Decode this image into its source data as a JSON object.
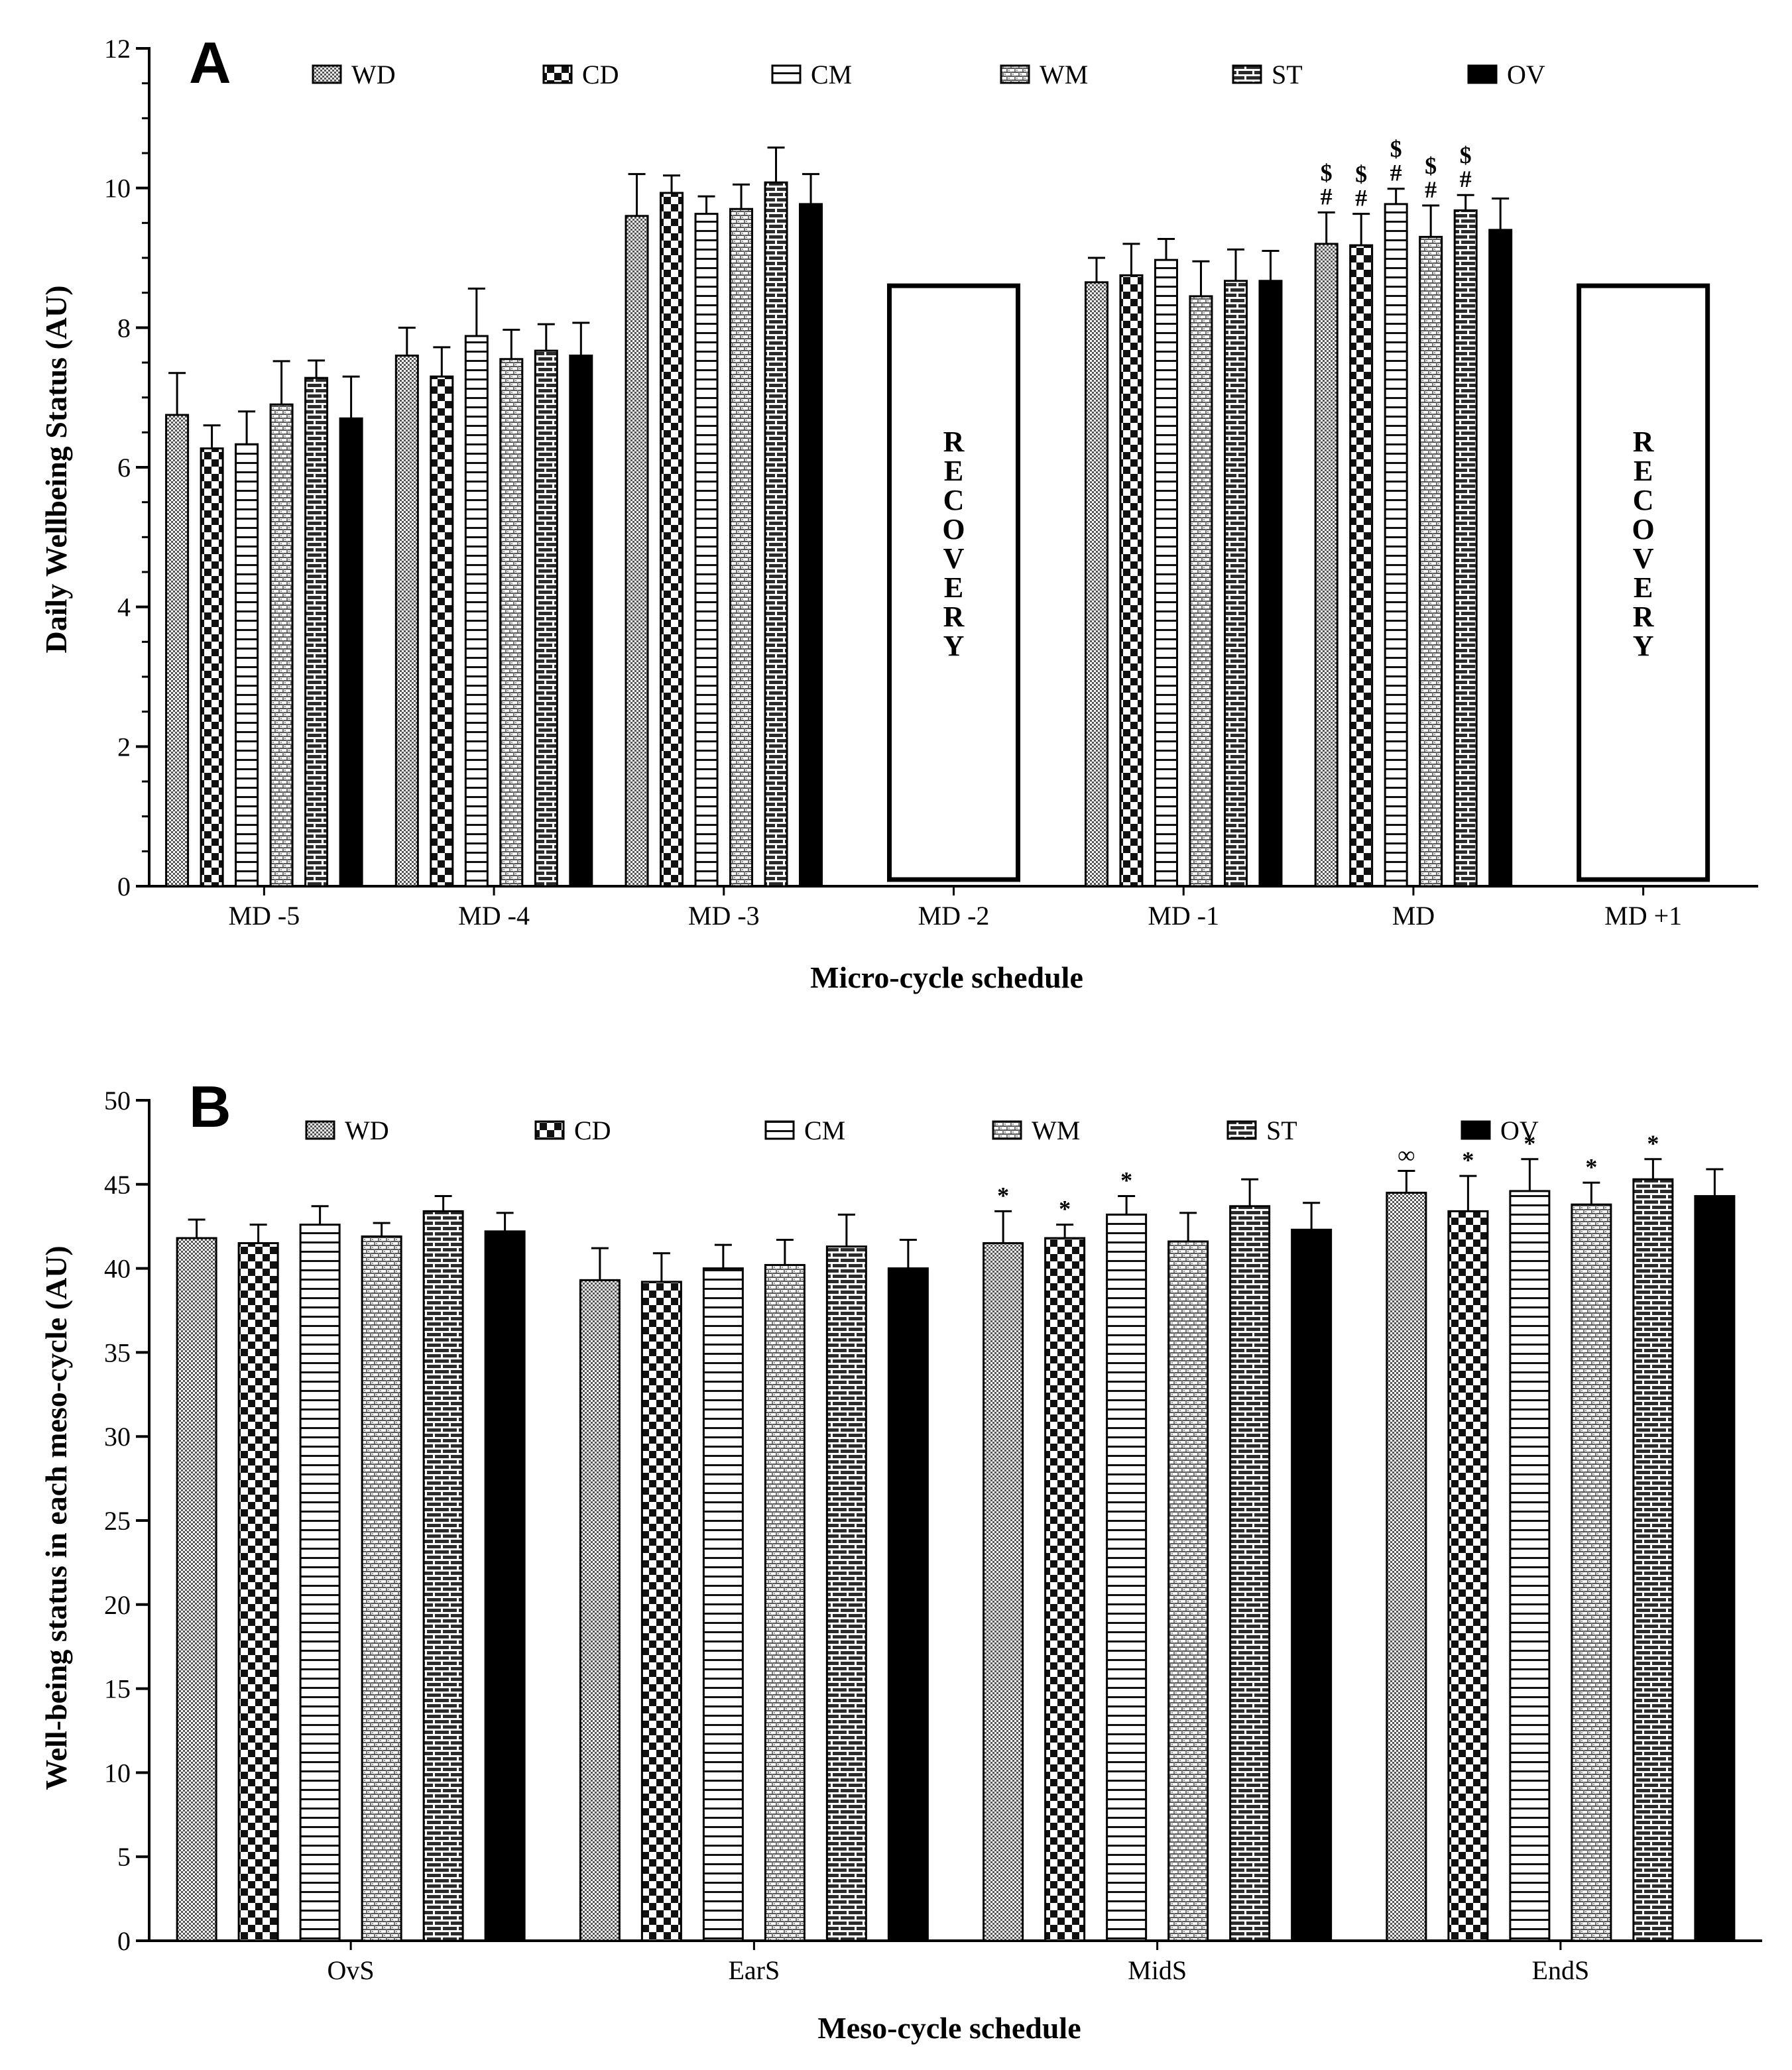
{
  "chart_data": [
    {
      "type": "bar",
      "panel": "A",
      "xlabel": "Micro-cycle schedule",
      "ylabel": "Daily Wellbeing Status (AU)",
      "ylim": [
        0,
        12
      ],
      "yticks": [
        0,
        2,
        4,
        6,
        8,
        10,
        12
      ],
      "categories": [
        "MD -5",
        "MD -4",
        "MD -3",
        "MD -2",
        "MD -1",
        "MD",
        "MD +1"
      ],
      "legend": [
        "WD",
        "CD",
        "CM",
        "WM",
        "ST",
        "OV"
      ],
      "series": [
        {
          "name": "WD",
          "values": [
            6.75,
            7.6,
            9.6,
            null,
            8.65,
            9.2,
            null
          ],
          "errors": [
            0.6,
            0.4,
            0.6,
            null,
            0.35,
            0.45,
            null
          ]
        },
        {
          "name": "CD",
          "values": [
            6.27,
            7.3,
            9.93,
            null,
            8.75,
            9.18,
            null
          ],
          "errors": [
            0.33,
            0.42,
            0.25,
            null,
            0.45,
            0.45,
            null
          ]
        },
        {
          "name": "CM",
          "values": [
            6.33,
            7.88,
            9.63,
            null,
            8.97,
            9.77,
            null
          ],
          "errors": [
            0.47,
            0.68,
            0.25,
            null,
            0.3,
            0.22,
            null
          ]
        },
        {
          "name": "WM",
          "values": [
            6.9,
            7.55,
            9.7,
            null,
            8.45,
            9.3,
            null
          ],
          "errors": [
            0.62,
            0.42,
            0.35,
            null,
            0.5,
            0.45,
            null
          ]
        },
        {
          "name": "ST",
          "values": [
            7.28,
            7.67,
            10.08,
            null,
            8.67,
            9.68,
            null
          ],
          "errors": [
            0.25,
            0.38,
            0.5,
            null,
            0.45,
            0.22,
            null
          ]
        },
        {
          "name": "OV",
          "values": [
            6.7,
            7.6,
            9.77,
            null,
            8.67,
            9.4,
            null
          ],
          "errors": [
            0.6,
            0.47,
            0.43,
            null,
            0.43,
            0.45,
            null
          ]
        }
      ],
      "recovery_blocks": [
        {
          "category": "MD -2",
          "value": 8.6,
          "label": "RECOVERY"
        },
        {
          "category": "MD +1",
          "value": 8.6,
          "label": "RECOVERY"
        }
      ],
      "annotations": [
        {
          "category": "MD",
          "series": "WD",
          "marks": [
            "$",
            "#"
          ]
        },
        {
          "category": "MD",
          "series": "CD",
          "marks": [
            "$",
            "#"
          ]
        },
        {
          "category": "MD",
          "series": "CM",
          "marks": [
            "$",
            "#"
          ]
        },
        {
          "category": "MD",
          "series": "WM",
          "marks": [
            "$",
            "#"
          ]
        },
        {
          "category": "MD",
          "series": "ST",
          "marks": [
            "$",
            "#"
          ]
        }
      ]
    },
    {
      "type": "bar",
      "panel": "B",
      "xlabel": "Meso-cycle schedule",
      "ylabel": "Well-being status in each meso-cycle (AU)",
      "ylim": [
        0,
        50
      ],
      "yticks": [
        0,
        5,
        10,
        15,
        20,
        25,
        30,
        35,
        40,
        45,
        50
      ],
      "categories": [
        "OvS",
        "EarS",
        "MidS",
        "EndS"
      ],
      "legend": [
        "WD",
        "CD",
        "CM",
        "WM",
        "ST",
        "OV"
      ],
      "series": [
        {
          "name": "WD",
          "values": [
            41.8,
            39.3,
            41.5,
            44.5
          ],
          "errors": [
            1.1,
            1.9,
            1.9,
            1.3
          ]
        },
        {
          "name": "CD",
          "values": [
            41.5,
            39.2,
            41.8,
            43.4
          ],
          "errors": [
            1.1,
            1.7,
            0.8,
            2.1
          ]
        },
        {
          "name": "CM",
          "values": [
            42.6,
            40.0,
            43.2,
            44.6
          ],
          "errors": [
            1.1,
            1.4,
            1.1,
            1.9
          ]
        },
        {
          "name": "WM",
          "values": [
            41.9,
            40.2,
            41.6,
            43.8
          ],
          "errors": [
            0.8,
            1.5,
            1.7,
            1.3
          ]
        },
        {
          "name": "ST",
          "values": [
            43.4,
            41.3,
            43.7,
            45.3
          ],
          "errors": [
            0.9,
            1.9,
            1.6,
            1.2
          ]
        },
        {
          "name": "OV",
          "values": [
            42.2,
            40.0,
            42.3,
            44.3
          ],
          "errors": [
            1.1,
            1.7,
            1.6,
            1.6
          ]
        }
      ],
      "annotations": [
        {
          "category": "MidS",
          "series": "WD",
          "marks": [
            "*"
          ]
        },
        {
          "category": "MidS",
          "series": "CD",
          "marks": [
            "*"
          ]
        },
        {
          "category": "MidS",
          "series": "CM",
          "marks": [
            "*"
          ]
        },
        {
          "category": "EndS",
          "series": "WD",
          "marks": [
            "∞"
          ]
        },
        {
          "category": "EndS",
          "series": "CD",
          "marks": [
            "*"
          ]
        },
        {
          "category": "EndS",
          "series": "CM",
          "marks": [
            "*"
          ]
        },
        {
          "category": "EndS",
          "series": "WM",
          "marks": [
            "*"
          ]
        },
        {
          "category": "EndS",
          "series": "ST",
          "marks": [
            "*"
          ]
        }
      ]
    }
  ]
}
